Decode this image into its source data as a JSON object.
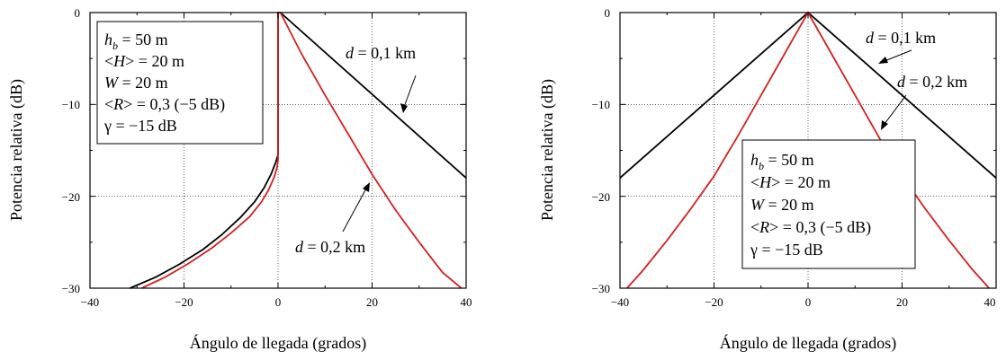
{
  "chart_data": [
    {
      "type": "line",
      "xlabel": "Ángulo de llegada (grados)",
      "ylabel": "Potencia relativa (dB)",
      "xlim": [
        -40,
        40
      ],
      "ylim": [
        -30,
        0
      ],
      "xticks": [
        "−40",
        "−20",
        "0",
        "20",
        "40"
      ],
      "yticks": [
        "0",
        "−10",
        "−20",
        "−30"
      ],
      "grid": true,
      "legend_box": [
        "h_b = 50 m",
        "<H> = 20 m",
        "W = 20 m",
        "<R> = 0,3 (−5 dB)",
        "γ = −15 dB"
      ],
      "series": [
        {
          "name": "d = 0,1 km",
          "color": "#000000",
          "x": [
            -31.5,
            -26,
            -21,
            -16,
            -12,
            -8,
            -5,
            -3,
            -1.5,
            -0.5,
            0,
            0,
            0.5,
            40
          ],
          "y": [
            -30,
            -28.8,
            -27.4,
            -25.8,
            -24.2,
            -22.3,
            -20.6,
            -19.1,
            -17.6,
            -16.3,
            -15.5,
            0,
            0,
            -18
          ]
        },
        {
          "name": "d = 0,2 km",
          "color": "#d42020",
          "x": [
            -29,
            -24,
            -19,
            -14,
            -10,
            -6,
            -3.5,
            -2,
            -0.8,
            -0.2,
            0,
            0,
            0.5,
            5,
            10,
            15,
            20,
            25,
            30,
            35,
            39
          ],
          "y": [
            -30,
            -28.8,
            -27.3,
            -25.6,
            -24,
            -22.2,
            -20.6,
            -19.3,
            -17.9,
            -16.8,
            -16,
            0,
            0,
            -4.5,
            -9,
            -13.3,
            -17.6,
            -21.5,
            -25,
            -28.3,
            -30
          ]
        }
      ]
    },
    {
      "type": "line",
      "xlabel": "Ángulo de llegada (grados)",
      "ylabel": "Potencia relativa (dB)",
      "xlim": [
        -40,
        40
      ],
      "ylim": [
        -30,
        0
      ],
      "xticks": [
        "−40",
        "−20",
        "0",
        "20",
        "40"
      ],
      "yticks": [
        "0",
        "−10",
        "−20",
        "−30"
      ],
      "grid": true,
      "legend_box": [
        "h_b = 50 m",
        "<H> = 20 m",
        "W = 20 m",
        "<R> = 0,3 (−5 dB)",
        "γ = −15 dB"
      ],
      "series": [
        {
          "name": "d = 0,1 km",
          "color": "#000000",
          "x": [
            -40,
            -20,
            0,
            20,
            40
          ],
          "y": [
            -18,
            -9,
            0,
            -9,
            -18
          ]
        },
        {
          "name": "d = 0,2 km",
          "color": "#d42020",
          "x": [
            -38.5,
            -35,
            -30,
            -25,
            -20,
            -15,
            -10,
            -5,
            0,
            5,
            10,
            15,
            20,
            25,
            30,
            35,
            38.5
          ],
          "y": [
            -30,
            -28,
            -24.8,
            -21.4,
            -17.8,
            -13.5,
            -9,
            -4.5,
            0,
            -4.5,
            -9,
            -13.5,
            -17.8,
            -21.4,
            -24.8,
            -28,
            -30
          ]
        }
      ]
    }
  ],
  "palette": {
    "text": "#000000",
    "frame": "#000000",
    "grid": "#000000"
  }
}
